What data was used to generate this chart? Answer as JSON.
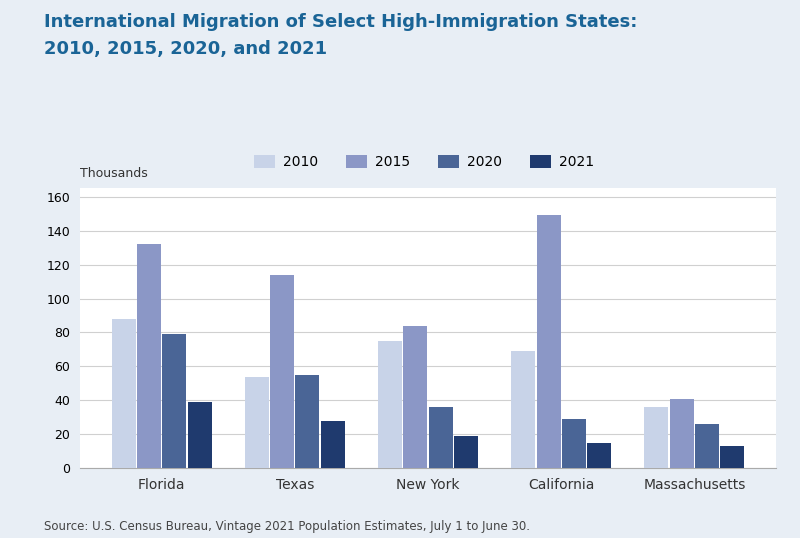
{
  "title_line1": "International Migration of Select High-Immigration States:",
  "title_line2": "2010, 2015, 2020, and 2021",
  "title_color": "#1a6496",
  "categories": [
    "Florida",
    "Texas",
    "New York",
    "California",
    "Massachusetts"
  ],
  "years": [
    "2010",
    "2015",
    "2020",
    "2021"
  ],
  "values": {
    "Florida": [
      88,
      132,
      79,
      39
    ],
    "Texas": [
      54,
      114,
      55,
      28
    ],
    "New York": [
      75,
      84,
      36,
      19
    ],
    "California": [
      69,
      149,
      29,
      15
    ],
    "Massachusetts": [
      36,
      41,
      26,
      13
    ]
  },
  "colors": [
    "#c8d3e8",
    "#8b97c6",
    "#4a6596",
    "#1f3a6e"
  ],
  "ylabel": "Thousands",
  "ylim": [
    0,
    165
  ],
  "yticks": [
    0,
    20,
    40,
    60,
    80,
    100,
    120,
    140,
    160
  ],
  "source": "Source: U.S. Census Bureau, Vintage 2021 Population Estimates, July 1 to June 30.",
  "outer_bg_color": "#e8eef5",
  "plot_bg_color": "#ffffff",
  "grid_color": "#d0d0d0"
}
